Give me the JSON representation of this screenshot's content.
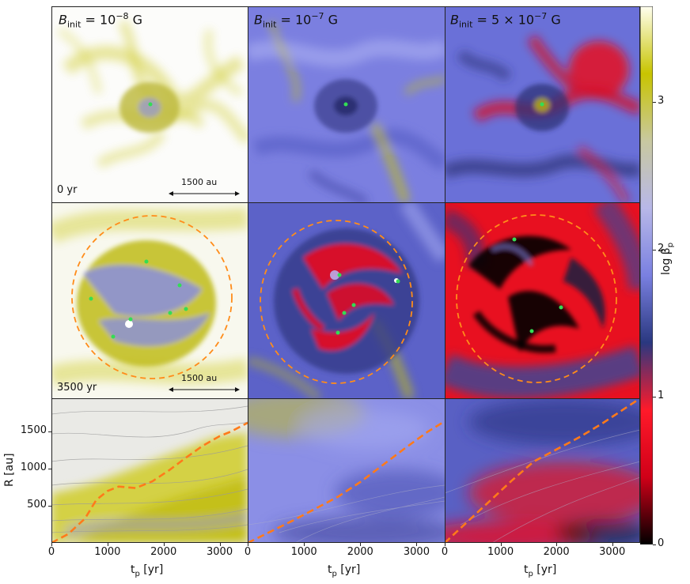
{
  "columns": [
    {
      "id": "b1e8",
      "title": {
        "lhs": "B",
        "sub": "init",
        "eq": " = 10",
        "exp": "−8",
        "unit": " G"
      }
    },
    {
      "id": "b1e7",
      "title": {
        "lhs": "B",
        "sub": "init",
        "eq": " = 10",
        "exp": "−7",
        "unit": " G"
      }
    },
    {
      "id": "b5e7",
      "title": {
        "lhs": "B",
        "sub": "init",
        "eq": " = 5 × 10",
        "exp": "−7",
        "unit": " G"
      }
    }
  ],
  "rows": [
    {
      "time_label": "0 yr",
      "scale_bar_label": "1500 au"
    },
    {
      "time_label": "3500 yr",
      "scale_bar_label": "1500 au"
    }
  ],
  "colorbar": {
    "label": "log β",
    "label_sub": "p",
    "ticks": [
      "0",
      "1",
      "2",
      "3"
    ],
    "range": [
      0,
      3.65
    ],
    "colors": [
      "#000000",
      "#d00018",
      "#ff1a2a",
      "#2a3880",
      "#7a80e0",
      "#b8b8e8",
      "#c8c8a0",
      "#c8c400",
      "#fffff0"
    ]
  },
  "bottom_row": {
    "ylabel": "R [au]",
    "xlabel": "t",
    "xlabel_sub": "p",
    "xlabel_unit": " [yr]",
    "yticks": [
      "500",
      "1000",
      "1500"
    ],
    "xticks": [
      "0",
      "1000",
      "2000",
      "3000"
    ],
    "accent_color": "#ff7a1a"
  },
  "chart_data": [
    {
      "type": "line",
      "panel": "B_init = 10^-8 G",
      "xlabel": "t_p [yr]",
      "ylabel": "R [au]",
      "xlim": [
        0,
        3500
      ],
      "ylim": [
        0,
        1950
      ],
      "series": [
        {
          "x": [
            0,
            300,
            600,
            800,
            1000,
            1200,
            1500,
            1800,
            2100,
            2400,
            2700,
            3000,
            3200,
            3500
          ],
          "y": [
            0,
            120,
            330,
            580,
            700,
            760,
            740,
            830,
            980,
            1150,
            1310,
            1440,
            1500,
            1620
          ]
        }
      ]
    },
    {
      "type": "line",
      "panel": "B_init = 10^-7 G",
      "xlabel": "t_p [yr]",
      "ylabel": "",
      "xlim": [
        0,
        3500
      ],
      "ylim": [
        0,
        1950
      ],
      "series": [
        {
          "x": [
            0,
            400,
            800,
            1200,
            1600,
            2000,
            2400,
            2800,
            3200,
            3500
          ],
          "y": [
            0,
            150,
            300,
            460,
            620,
            820,
            1050,
            1280,
            1500,
            1640
          ]
        }
      ]
    },
    {
      "type": "line",
      "panel": "B_init = 5 × 10^-7 G",
      "xlabel": "t_p [yr]",
      "ylabel": "",
      "xlim": [
        0,
        3500
      ],
      "ylim": [
        0,
        1950
      ],
      "series": [
        {
          "x": [
            0,
            400,
            800,
            1200,
            1600,
            2000,
            2400,
            2800,
            3200,
            3500
          ],
          "y": [
            0,
            280,
            560,
            840,
            1100,
            1260,
            1420,
            1600,
            1800,
            1950
          ]
        }
      ]
    }
  ]
}
